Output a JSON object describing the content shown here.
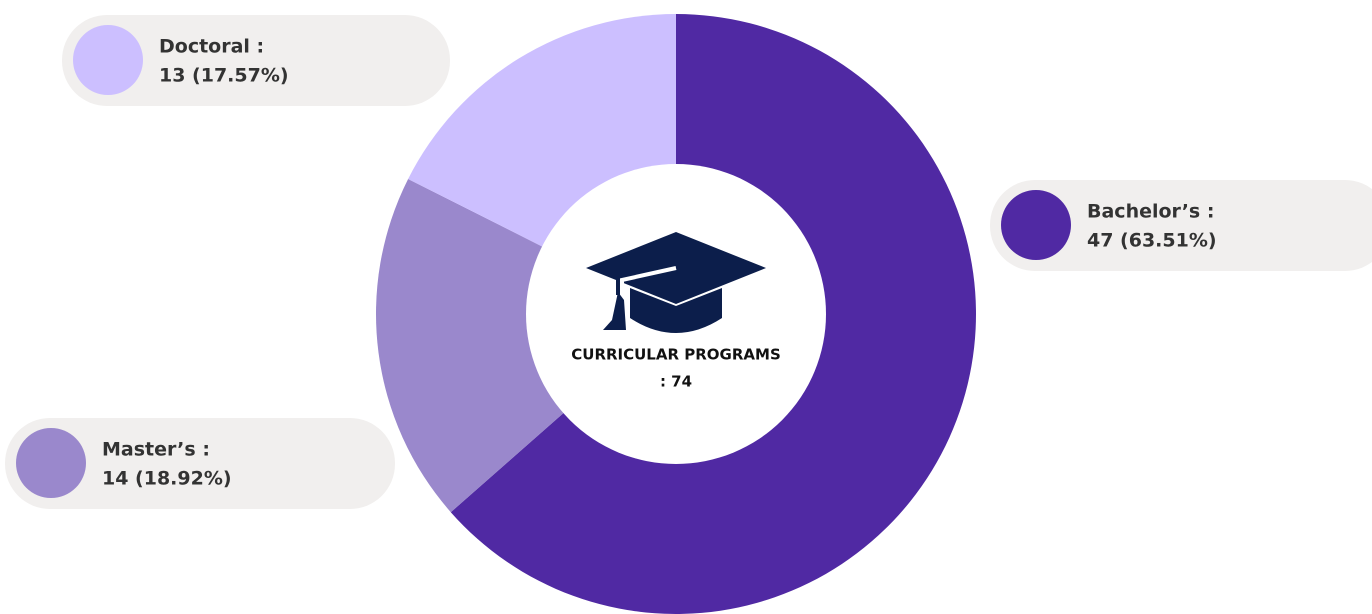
{
  "chart_data": {
    "type": "pie",
    "donut": true,
    "categories": [
      "Bachelor’s :",
      "Master’s :",
      "Doctoral :"
    ],
    "values": [
      47,
      14,
      13
    ],
    "value_labels": [
      "47 (63.51%)",
      "14  (18.92%)",
      "13 (17.57%)"
    ],
    "colors": [
      "#5029a3",
      "#9a88cc",
      "#ccbfff"
    ],
    "center_label": [
      "CURRICULAR PROGRAMS",
      ": 74"
    ]
  }
}
